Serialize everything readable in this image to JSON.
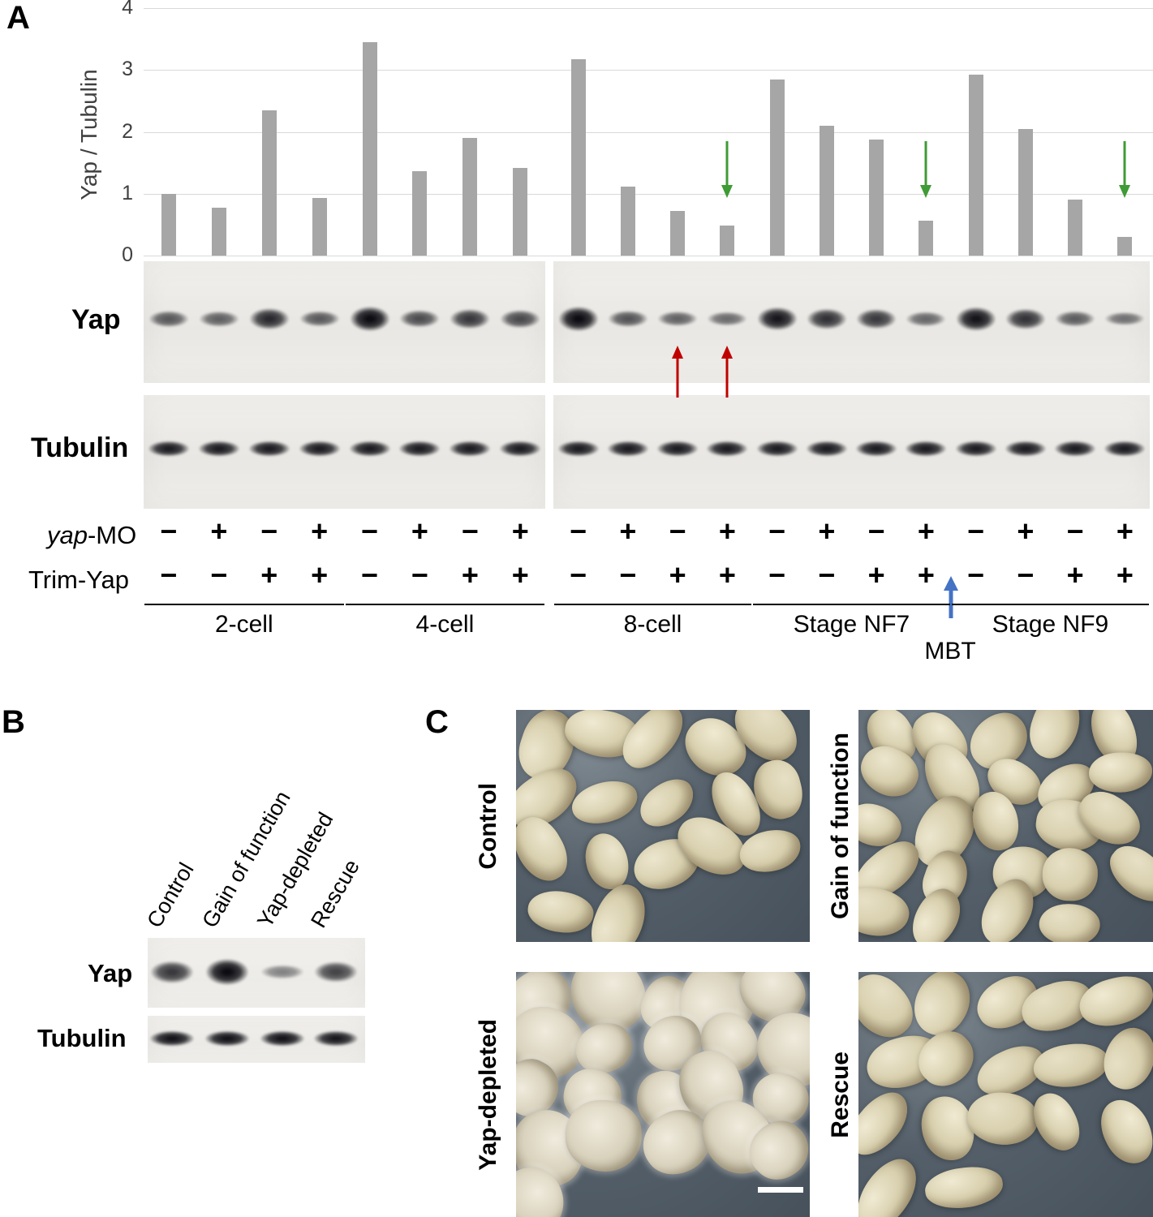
{
  "panels": {
    "a": "A",
    "b": "B",
    "c": "C"
  },
  "chart_data": {
    "type": "bar",
    "title": "",
    "xlabel": "",
    "ylabel": "Yap / Tubulin",
    "ylim": [
      0,
      4
    ],
    "yticks": [
      0,
      1,
      2,
      3,
      4
    ],
    "categories": [
      "lane1",
      "lane2",
      "lane3",
      "lane4",
      "lane5",
      "lane6",
      "lane7",
      "lane8",
      "lane9",
      "lane10",
      "lane11",
      "lane12",
      "lane13",
      "lane14",
      "lane15",
      "lane16",
      "lane17",
      "lane18",
      "lane19",
      "lane20"
    ],
    "values": [
      1.0,
      0.78,
      2.35,
      0.93,
      3.45,
      1.37,
      1.9,
      1.42,
      3.17,
      1.12,
      0.72,
      0.48,
      2.85,
      2.1,
      1.88,
      0.57,
      2.93,
      2.05,
      0.9,
      0.3
    ],
    "bar_color": "#a6a6a6",
    "grid": true,
    "green_arrow_lanes": [
      12,
      16,
      20
    ],
    "red_arrow_lanes": [
      11,
      12
    ]
  },
  "panel_a": {
    "yap_label": "Yap",
    "tubulin_label": "Tubulin",
    "row1_label_italic": "yap",
    "row1_label_rest": "-MO",
    "row2_label": "Trim-Yap",
    "row1_values": [
      "−",
      "+",
      "−",
      "+",
      "−",
      "+",
      "−",
      "+",
      "−",
      "+",
      "−",
      "+",
      "−",
      "+",
      "−",
      "+",
      "−",
      "+",
      "−",
      "+"
    ],
    "row2_values": [
      "−",
      "−",
      "+",
      "+",
      "−",
      "−",
      "+",
      "+",
      "−",
      "−",
      "+",
      "+",
      "−",
      "−",
      "+",
      "+",
      "−",
      "−",
      "+",
      "+"
    ],
    "groups": [
      "2-cell",
      "4-cell",
      "8-cell",
      "Stage NF7",
      "Stage NF9"
    ],
    "mbt": "MBT",
    "tubulin_uniform_intensity": 0.85
  },
  "panel_b": {
    "columns": [
      "Control",
      "Gain of function",
      "Yap-depleted",
      "Rescue"
    ],
    "yap_label": "Yap",
    "tubulin_label": "Tubulin",
    "yap_intensities": [
      0.7,
      1.0,
      0.18,
      0.62
    ],
    "tubulin_intensities": [
      0.95,
      0.95,
      0.95,
      0.9
    ]
  },
  "panel_c": {
    "labels": [
      "Control",
      "Gain of function",
      "Yap-depleted",
      "Rescue"
    ]
  },
  "colors": {
    "bar": "#a6a6a6",
    "green_arrow": "#3f9b35",
    "red_arrow": "#c00000",
    "blue_arrow": "#4472c4"
  }
}
